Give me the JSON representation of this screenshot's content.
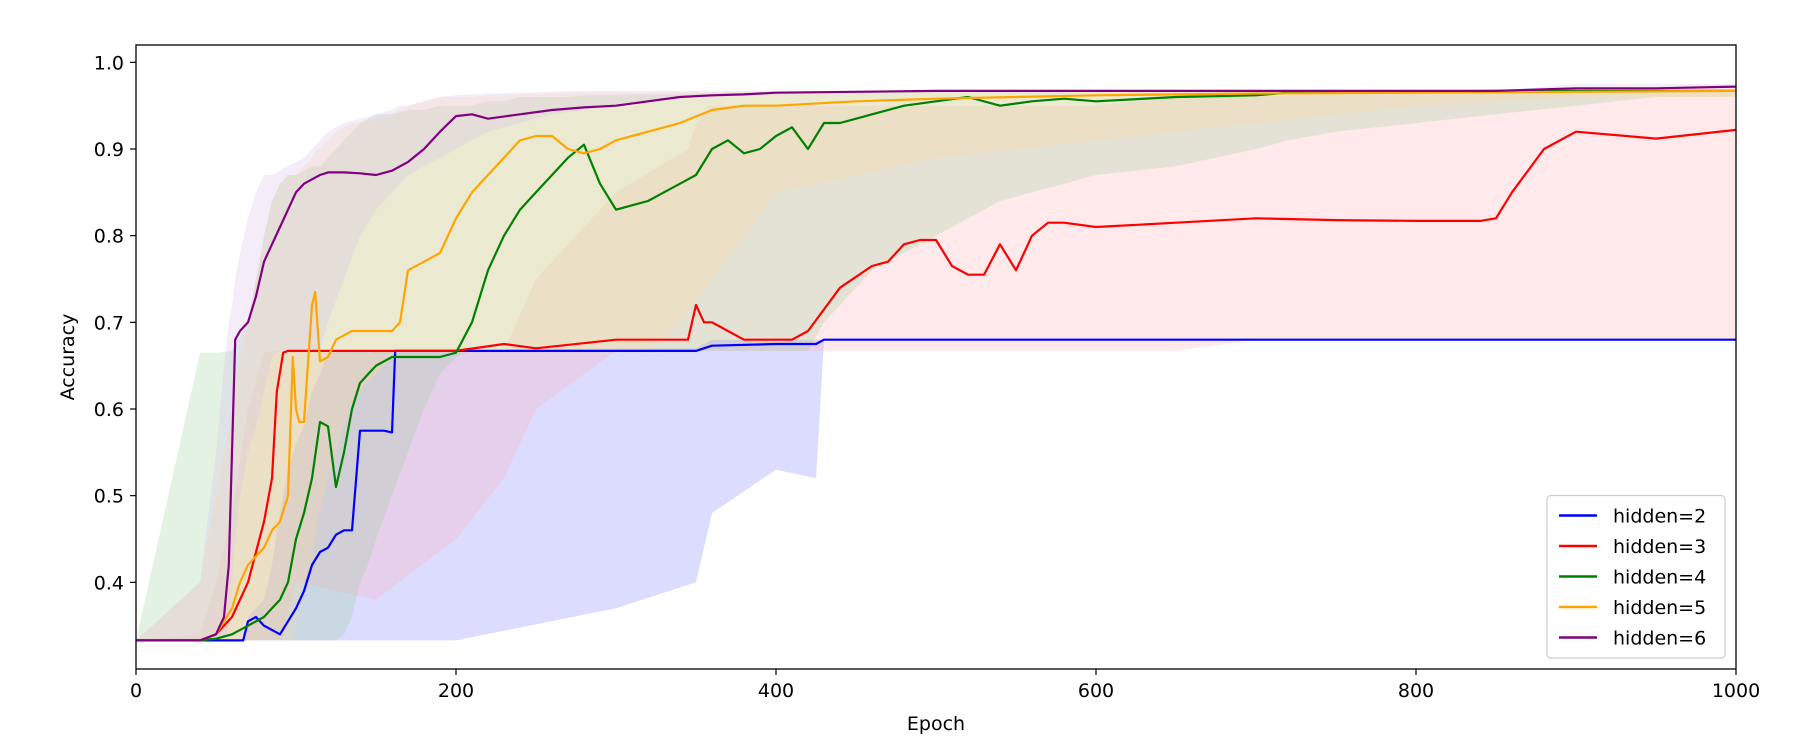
{
  "chart_data": {
    "type": "line",
    "xlabel": "Epoch",
    "ylabel": "Accuracy",
    "xlim": [
      0,
      1000
    ],
    "ylim": [
      0.3,
      1.02
    ],
    "xticks": [
      0,
      200,
      400,
      600,
      800,
      1000
    ],
    "yticks": [
      0.4,
      0.5,
      0.6,
      0.7,
      0.8,
      0.9,
      1.0
    ],
    "xtick_labels": [
      "0",
      "200",
      "400",
      "600",
      "800",
      "1000"
    ],
    "ytick_labels": [
      "0.4",
      "0.5",
      "0.6",
      "0.7",
      "0.8",
      "0.9",
      "1.0"
    ],
    "grid": false,
    "legend_position": "lower-right",
    "series": [
      {
        "name": "hidden=2",
        "color": "#0000ff",
        "band_color": "#8080ff",
        "x": [
          0,
          67,
          70,
          75,
          80,
          85,
          90,
          95,
          100,
          105,
          110,
          115,
          120,
          125,
          130,
          135,
          140,
          145,
          150,
          155,
          160,
          162,
          200,
          300,
          350,
          360,
          400,
          425,
          430,
          1000
        ],
        "y": [
          0.333,
          0.333,
          0.355,
          0.36,
          0.35,
          0.345,
          0.34,
          0.355,
          0.37,
          0.39,
          0.42,
          0.435,
          0.44,
          0.455,
          0.46,
          0.46,
          0.575,
          0.575,
          0.575,
          0.575,
          0.573,
          0.667,
          0.667,
          0.667,
          0.667,
          0.673,
          0.675,
          0.675,
          0.68,
          0.68
        ],
        "upper": [
          0.333,
          0.333,
          0.36,
          0.37,
          0.38,
          0.42,
          0.48,
          0.53,
          0.56,
          0.58,
          0.62,
          0.64,
          0.665,
          0.665,
          0.667,
          0.667,
          0.667,
          0.667,
          0.667,
          0.667,
          0.667,
          0.667,
          0.667,
          0.67,
          0.67,
          0.68,
          0.68,
          0.68,
          0.68,
          0.68
        ],
        "lower": [
          0.333,
          0.333,
          0.333,
          0.333,
          0.333,
          0.333,
          0.333,
          0.333,
          0.333,
          0.333,
          0.333,
          0.333,
          0.333,
          0.333,
          0.333,
          0.333,
          0.333,
          0.333,
          0.333,
          0.333,
          0.333,
          0.333,
          0.333,
          0.37,
          0.4,
          0.48,
          0.53,
          0.52,
          0.68,
          0.68
        ]
      },
      {
        "name": "hidden=3",
        "color": "#ff0000",
        "band_color": "#ffb0b8",
        "x": [
          0,
          40,
          50,
          60,
          70,
          80,
          85,
          88,
          92,
          95,
          100,
          150,
          200,
          230,
          250,
          300,
          345,
          350,
          355,
          360,
          370,
          380,
          410,
          420,
          440,
          460,
          470,
          480,
          490,
          500,
          510,
          520,
          530,
          540,
          550,
          560,
          570,
          580,
          600,
          650,
          700,
          750,
          800,
          820,
          840,
          850,
          860,
          880,
          900,
          950,
          1000
        ],
        "y": [
          0.333,
          0.333,
          0.34,
          0.36,
          0.4,
          0.47,
          0.52,
          0.62,
          0.665,
          0.667,
          0.667,
          0.667,
          0.667,
          0.675,
          0.67,
          0.68,
          0.68,
          0.72,
          0.7,
          0.7,
          0.69,
          0.68,
          0.68,
          0.69,
          0.74,
          0.765,
          0.77,
          0.79,
          0.795,
          0.795,
          0.765,
          0.755,
          0.755,
          0.79,
          0.76,
          0.8,
          0.815,
          0.815,
          0.81,
          0.815,
          0.82,
          0.818,
          0.817,
          0.817,
          0.817,
          0.82,
          0.85,
          0.9,
          0.92,
          0.912,
          0.922
        ],
        "upper": [
          0.333,
          0.34,
          0.4,
          0.48,
          0.6,
          0.665,
          0.667,
          0.667,
          0.667,
          0.667,
          0.667,
          0.667,
          0.667,
          0.667,
          0.75,
          0.85,
          0.9,
          0.93,
          0.94,
          0.95,
          0.95,
          0.95,
          0.95,
          0.95,
          0.95,
          0.95,
          0.95,
          0.95,
          0.95,
          0.95,
          0.95,
          0.95,
          0.95,
          0.95,
          0.95,
          0.95,
          0.95,
          0.95,
          0.95,
          0.96,
          0.96,
          0.965,
          0.965,
          0.965,
          0.965,
          0.965,
          0.965,
          0.967,
          0.967,
          0.967,
          0.967
        ],
        "lower": [
          0.333,
          0.333,
          0.333,
          0.333,
          0.333,
          0.333,
          0.333,
          0.333,
          0.333,
          0.37,
          0.4,
          0.38,
          0.45,
          0.52,
          0.6,
          0.667,
          0.667,
          0.667,
          0.667,
          0.667,
          0.667,
          0.667,
          0.667,
          0.667,
          0.667,
          0.667,
          0.667,
          0.667,
          0.667,
          0.667,
          0.667,
          0.667,
          0.667,
          0.667,
          0.667,
          0.667,
          0.667,
          0.667,
          0.667,
          0.667,
          0.68,
          0.68,
          0.68,
          0.68,
          0.68,
          0.68,
          0.68,
          0.68,
          0.68,
          0.68,
          0.68
        ]
      },
      {
        "name": "hidden=4",
        "color": "#008000",
        "band_color": "#9fd29f",
        "x": [
          0,
          40,
          50,
          60,
          70,
          80,
          85,
          90,
          95,
          100,
          105,
          110,
          115,
          120,
          125,
          130,
          135,
          140,
          145,
          150,
          160,
          170,
          180,
          190,
          200,
          210,
          220,
          230,
          240,
          250,
          260,
          270,
          280,
          290,
          300,
          310,
          320,
          330,
          340,
          350,
          360,
          370,
          380,
          390,
          400,
          410,
          420,
          430,
          440,
          450,
          460,
          480,
          500,
          520,
          540,
          560,
          580,
          600,
          650,
          700,
          720,
          750,
          800,
          850,
          900,
          950,
          1000
        ],
        "y": [
          0.333,
          0.333,
          0.335,
          0.34,
          0.35,
          0.36,
          0.37,
          0.38,
          0.4,
          0.45,
          0.48,
          0.52,
          0.585,
          0.58,
          0.51,
          0.55,
          0.6,
          0.63,
          0.64,
          0.65,
          0.66,
          0.66,
          0.66,
          0.66,
          0.665,
          0.7,
          0.76,
          0.8,
          0.83,
          0.85,
          0.87,
          0.89,
          0.905,
          0.86,
          0.83,
          0.835,
          0.84,
          0.85,
          0.86,
          0.87,
          0.9,
          0.91,
          0.895,
          0.9,
          0.915,
          0.925,
          0.9,
          0.93,
          0.93,
          0.935,
          0.94,
          0.95,
          0.955,
          0.96,
          0.95,
          0.955,
          0.958,
          0.955,
          0.96,
          0.962,
          0.965,
          0.965,
          0.966,
          0.967,
          0.967,
          0.967,
          0.967
        ],
        "upper": [
          0.333,
          0.665,
          0.665,
          0.667,
          0.7,
          0.8,
          0.84,
          0.86,
          0.87,
          0.87,
          0.875,
          0.88,
          0.88,
          0.89,
          0.9,
          0.91,
          0.92,
          0.93,
          0.935,
          0.94,
          0.94,
          0.945,
          0.945,
          0.95,
          0.95,
          0.95,
          0.955,
          0.955,
          0.96,
          0.96,
          0.96,
          0.96,
          0.962,
          0.962,
          0.962,
          0.963,
          0.963,
          0.963,
          0.963,
          0.964,
          0.964,
          0.965,
          0.965,
          0.965,
          0.965,
          0.965,
          0.966,
          0.966,
          0.966,
          0.966,
          0.966,
          0.966,
          0.967,
          0.967,
          0.967,
          0.967,
          0.967,
          0.967,
          0.967,
          0.967,
          0.967,
          0.967,
          0.967,
          0.967,
          0.967,
          0.967,
          0.967
        ],
        "lower": [
          0.333,
          0.333,
          0.333,
          0.333,
          0.333,
          0.333,
          0.333,
          0.333,
          0.333,
          0.333,
          0.333,
          0.333,
          0.333,
          0.333,
          0.333,
          0.34,
          0.36,
          0.4,
          0.42,
          0.45,
          0.5,
          0.55,
          0.6,
          0.64,
          0.66,
          0.667,
          0.667,
          0.667,
          0.667,
          0.667,
          0.667,
          0.667,
          0.667,
          0.667,
          0.667,
          0.667,
          0.667,
          0.667,
          0.667,
          0.667,
          0.667,
          0.667,
          0.667,
          0.667,
          0.667,
          0.667,
          0.667,
          0.7,
          0.72,
          0.74,
          0.76,
          0.78,
          0.8,
          0.82,
          0.84,
          0.85,
          0.86,
          0.87,
          0.88,
          0.9,
          0.91,
          0.92,
          0.93,
          0.94,
          0.95,
          0.96,
          0.96
        ]
      },
      {
        "name": "hidden=5",
        "color": "#ffa500",
        "band_color": "#ffd9a0",
        "x": [
          0,
          40,
          50,
          60,
          65,
          70,
          75,
          80,
          85,
          90,
          95,
          98,
          100,
          102,
          105,
          110,
          112,
          115,
          120,
          125,
          130,
          135,
          140,
          150,
          160,
          165,
          170,
          180,
          190,
          200,
          210,
          220,
          230,
          240,
          250,
          260,
          270,
          280,
          290,
          300,
          320,
          340,
          360,
          380,
          400,
          450,
          500,
          550,
          600,
          700,
          800,
          900,
          1000
        ],
        "y": [
          0.333,
          0.333,
          0.34,
          0.37,
          0.4,
          0.42,
          0.43,
          0.44,
          0.46,
          0.47,
          0.5,
          0.66,
          0.6,
          0.585,
          0.585,
          0.72,
          0.735,
          0.655,
          0.66,
          0.68,
          0.685,
          0.69,
          0.69,
          0.69,
          0.69,
          0.7,
          0.76,
          0.77,
          0.78,
          0.82,
          0.85,
          0.87,
          0.89,
          0.91,
          0.915,
          0.915,
          0.9,
          0.895,
          0.9,
          0.91,
          0.92,
          0.93,
          0.945,
          0.95,
          0.95,
          0.955,
          0.958,
          0.96,
          0.962,
          0.964,
          0.965,
          0.966,
          0.967
        ],
        "upper": [
          0.333,
          0.4,
          0.5,
          0.6,
          0.66,
          0.7,
          0.75,
          0.8,
          0.84,
          0.86,
          0.87,
          0.87,
          0.87,
          0.875,
          0.88,
          0.89,
          0.9,
          0.9,
          0.91,
          0.92,
          0.925,
          0.93,
          0.93,
          0.935,
          0.94,
          0.945,
          0.95,
          0.955,
          0.96,
          0.96,
          0.96,
          0.962,
          0.962,
          0.963,
          0.963,
          0.964,
          0.964,
          0.965,
          0.965,
          0.965,
          0.965,
          0.966,
          0.966,
          0.966,
          0.966,
          0.967,
          0.967,
          0.967,
          0.967,
          0.967,
          0.967,
          0.967,
          0.967
        ],
        "lower": [
          0.333,
          0.333,
          0.333,
          0.333,
          0.333,
          0.333,
          0.333,
          0.333,
          0.333,
          0.333,
          0.333,
          0.333,
          0.35,
          0.38,
          0.4,
          0.42,
          0.45,
          0.48,
          0.52,
          0.55,
          0.58,
          0.6,
          0.62,
          0.64,
          0.66,
          0.667,
          0.667,
          0.667,
          0.667,
          0.667,
          0.667,
          0.667,
          0.667,
          0.667,
          0.667,
          0.667,
          0.667,
          0.667,
          0.667,
          0.667,
          0.667,
          0.7,
          0.75,
          0.8,
          0.85,
          0.87,
          0.89,
          0.9,
          0.91,
          0.93,
          0.95,
          0.96,
          0.96
        ]
      },
      {
        "name": "hidden=6",
        "color": "#800080",
        "band_color": "#d8bde8",
        "x": [
          0,
          40,
          50,
          55,
          58,
          60,
          62,
          65,
          70,
          75,
          80,
          85,
          90,
          95,
          100,
          105,
          110,
          115,
          120,
          130,
          140,
          150,
          160,
          165,
          170,
          180,
          190,
          200,
          210,
          220,
          240,
          260,
          280,
          300,
          320,
          340,
          360,
          380,
          400,
          450,
          500,
          600,
          700,
          800,
          850,
          900,
          950,
          1000
        ],
        "y": [
          0.333,
          0.333,
          0.34,
          0.36,
          0.42,
          0.55,
          0.68,
          0.69,
          0.7,
          0.73,
          0.77,
          0.79,
          0.81,
          0.83,
          0.85,
          0.86,
          0.865,
          0.87,
          0.873,
          0.873,
          0.872,
          0.87,
          0.875,
          0.88,
          0.885,
          0.9,
          0.92,
          0.938,
          0.94,
          0.935,
          0.94,
          0.945,
          0.948,
          0.95,
          0.955,
          0.96,
          0.962,
          0.963,
          0.965,
          0.966,
          0.967,
          0.967,
          0.967,
          0.967,
          0.967,
          0.97,
          0.97,
          0.972
        ],
        "upper": [
          0.333,
          0.4,
          0.55,
          0.65,
          0.7,
          0.72,
          0.75,
          0.78,
          0.82,
          0.85,
          0.87,
          0.87,
          0.875,
          0.88,
          0.885,
          0.89,
          0.9,
          0.91,
          0.92,
          0.93,
          0.935,
          0.94,
          0.945,
          0.95,
          0.95,
          0.955,
          0.96,
          0.962,
          0.963,
          0.964,
          0.965,
          0.966,
          0.967,
          0.967,
          0.967,
          0.967,
          0.967,
          0.967,
          0.967,
          0.967,
          0.967,
          0.967,
          0.967,
          0.967,
          0.967,
          0.975,
          0.975,
          0.975
        ],
        "lower": [
          0.333,
          0.333,
          0.333,
          0.333,
          0.35,
          0.4,
          0.45,
          0.5,
          0.55,
          0.58,
          0.62,
          0.66,
          0.667,
          0.667,
          0.667,
          0.667,
          0.667,
          0.667,
          0.7,
          0.75,
          0.8,
          0.83,
          0.85,
          0.86,
          0.87,
          0.88,
          0.89,
          0.9,
          0.91,
          0.92,
          0.93,
          0.94,
          0.945,
          0.95,
          0.955,
          0.96,
          0.96,
          0.962,
          0.963,
          0.965,
          0.966,
          0.967,
          0.967,
          0.967,
          0.967,
          0.967,
          0.967,
          0.967
        ]
      }
    ]
  }
}
